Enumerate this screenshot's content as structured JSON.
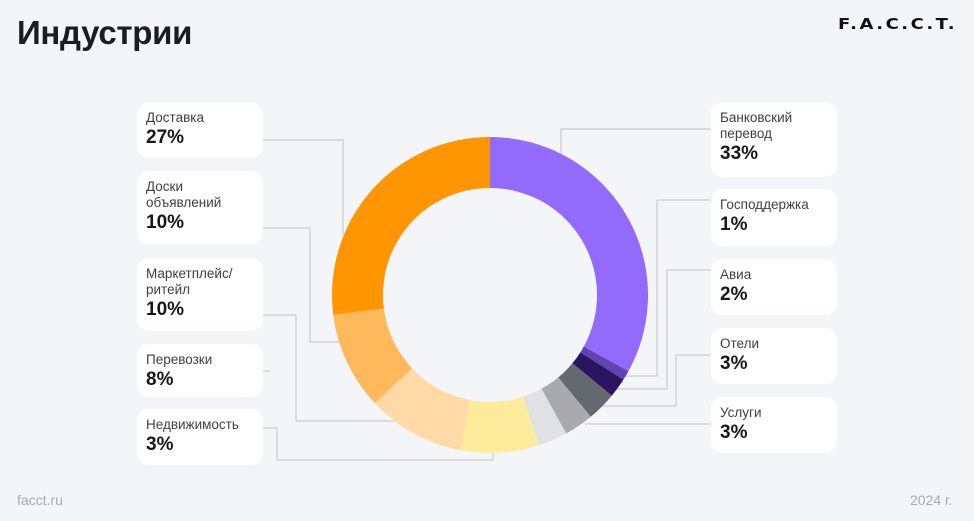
{
  "header": {
    "title": "Индустрии",
    "logo": "F.A.C.C.T."
  },
  "footer": {
    "site": "facct.ru",
    "year": "2024 г."
  },
  "chart_data": {
    "type": "pie",
    "variant": "donut",
    "title": "Индустрии",
    "start": "top",
    "direction": "clockwise",
    "unit": "%",
    "slices": [
      {
        "label": "Банковский перевод",
        "value": 33,
        "display": "33%",
        "color": "#936bfc",
        "side": "right"
      },
      {
        "label": "Господдержка",
        "value": 1,
        "display": "1%",
        "color": "#5f43b0",
        "side": "right"
      },
      {
        "label": "Авиа",
        "value": 2,
        "display": "2%",
        "color": "#2a1660",
        "side": "right"
      },
      {
        "label": "Отели",
        "value": 3,
        "display": "3%",
        "color": "#646970",
        "side": "right"
      },
      {
        "label": "Услуги",
        "value": 3,
        "display": "3%",
        "color": "#a8aaae",
        "side": "right"
      },
      {
        "label": "Недвижимость",
        "value": 3,
        "display": "3%",
        "color": "#e0e1e3",
        "side": "left"
      },
      {
        "label": "Перевозки",
        "value": 8,
        "display": "8%",
        "color": "#ffeb9c",
        "side": "left"
      },
      {
        "label": "Маркетплейс/ ритейл",
        "value": 10,
        "display": "10%",
        "color": "#ffd9a6",
        "side": "left"
      },
      {
        "label": "Доски объявлений",
        "value": 10,
        "display": "10%",
        "color": "#ffb85a",
        "side": "left"
      },
      {
        "label": "Доставка",
        "value": 27,
        "display": "27%",
        "color": "#ff9500",
        "side": "left"
      }
    ]
  },
  "cards": {
    "left": [
      {
        "name": "Доставка",
        "value": "27%"
      },
      {
        "name": "Доски объявлений",
        "value": "10%"
      },
      {
        "name": "Маркетплейс/ ритейл",
        "value": "10%"
      },
      {
        "name": "Перевозки",
        "value": "8%"
      },
      {
        "name": "Недвижимость",
        "value": "3%"
      }
    ],
    "right": [
      {
        "name": "Банковский перевод",
        "value": "33%"
      },
      {
        "name": "Господдержка",
        "value": "1%"
      },
      {
        "name": "Авиа",
        "value": "2%"
      },
      {
        "name": "Отели",
        "value": "3%"
      },
      {
        "name": "Услуги",
        "value": "3%"
      }
    ]
  },
  "connector_color": "#c9cbd0"
}
